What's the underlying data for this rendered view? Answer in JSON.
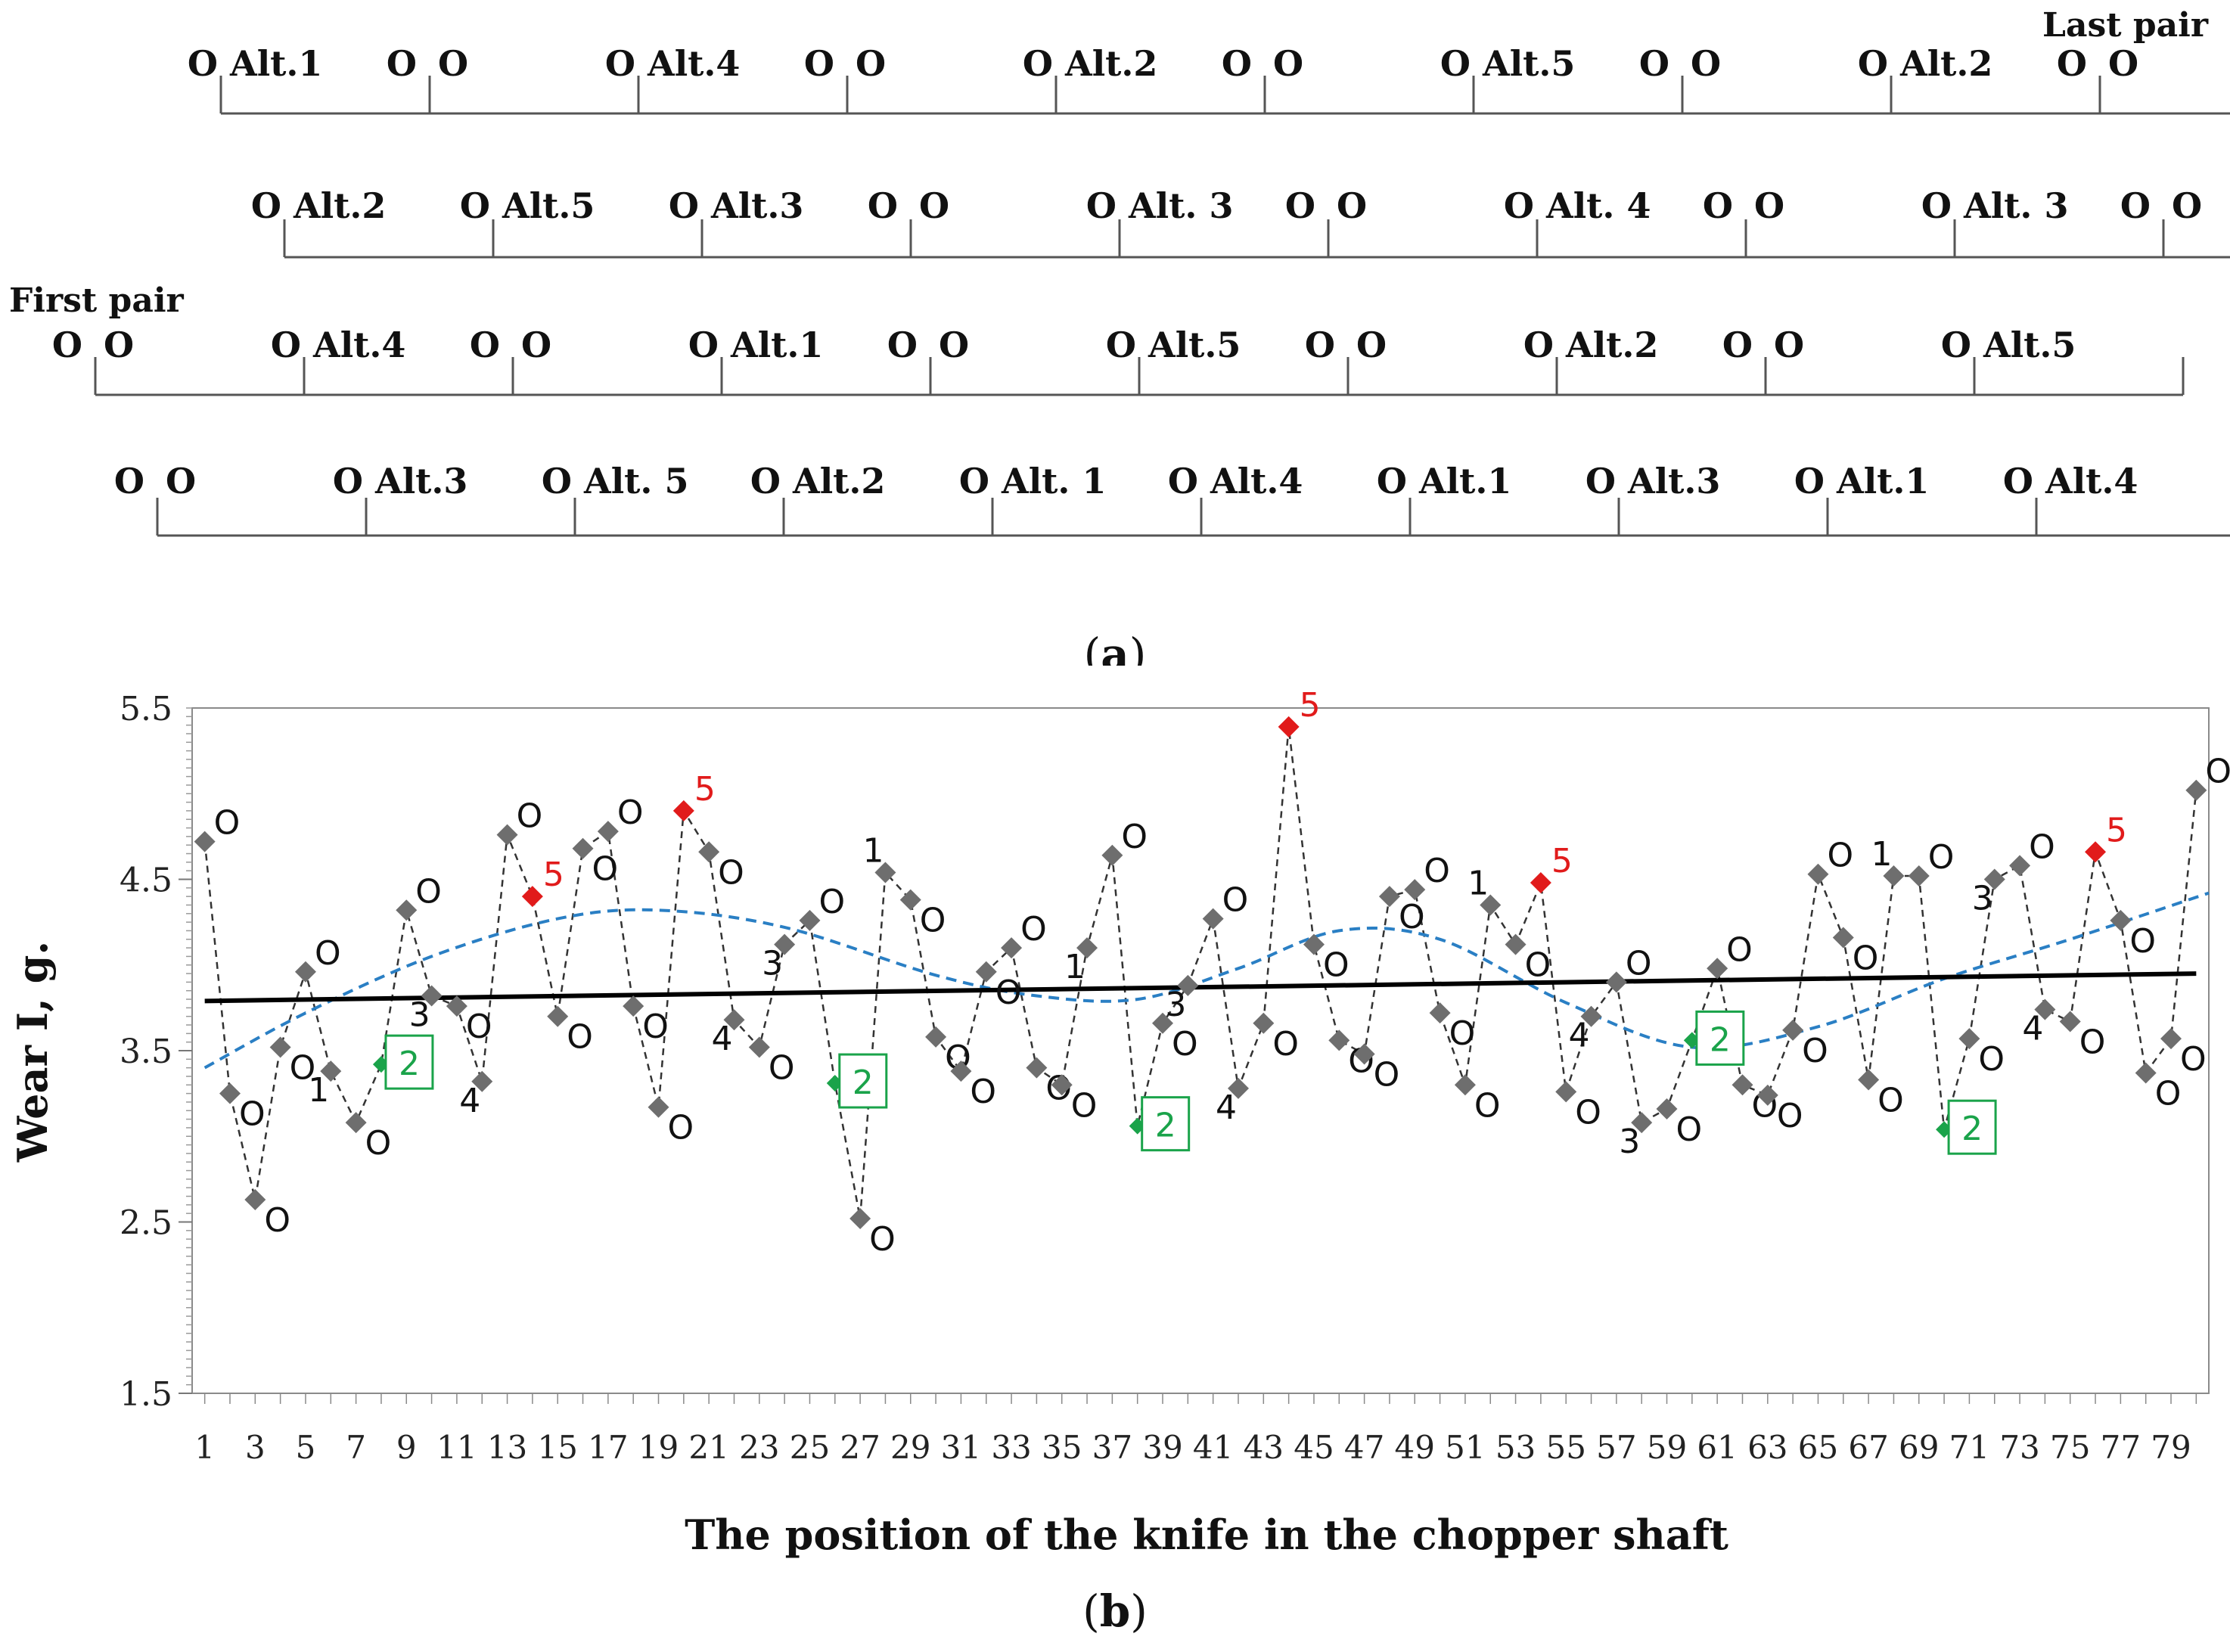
{
  "panel_a": {
    "caption_open": "(",
    "caption_letter": "a",
    "caption_close": ")",
    "first_pair_label": "First pair",
    "last_pair_label": "Last pair",
    "rows": [
      [
        {
          "pre": "O",
          "alt": "Alt.1"
        },
        {
          "pre": "O O",
          "alt": ""
        },
        {
          "pre": "O",
          "alt": "Alt.4"
        },
        {
          "pre": "O O",
          "alt": ""
        },
        {
          "pre": "O",
          "alt": "Alt.2"
        },
        {
          "pre": "O O",
          "alt": ""
        },
        {
          "pre": "O",
          "alt": "Alt.5"
        },
        {
          "pre": "O O",
          "alt": ""
        },
        {
          "pre": "O",
          "alt": "Alt.2"
        },
        {
          "pre": "O O",
          "alt": ""
        }
      ],
      [
        {
          "pre": "O",
          "alt": "Alt.2"
        },
        {
          "pre": "O",
          "alt": "Alt.5"
        },
        {
          "pre": "O",
          "alt": "Alt.3"
        },
        {
          "pre": "O O",
          "alt": ""
        },
        {
          "pre": "O",
          "alt": "Alt. 3"
        },
        {
          "pre": "O O",
          "alt": ""
        },
        {
          "pre": "O",
          "alt": "Alt. 4"
        },
        {
          "pre": "O O",
          "alt": ""
        },
        {
          "pre": "O",
          "alt": "Alt. 3"
        },
        {
          "pre": "O O",
          "alt": ""
        }
      ],
      [
        {
          "pre": "O O",
          "alt": ""
        },
        {
          "pre": "O",
          "alt": "Alt.4"
        },
        {
          "pre": "O O",
          "alt": ""
        },
        {
          "pre": "O",
          "alt": "Alt.1"
        },
        {
          "pre": "O O",
          "alt": ""
        },
        {
          "pre": "O",
          "alt": "Alt.5"
        },
        {
          "pre": "O O",
          "alt": ""
        },
        {
          "pre": "O",
          "alt": "Alt.2"
        },
        {
          "pre": "O O",
          "alt": ""
        },
        {
          "pre": "O",
          "alt": "Alt.5"
        }
      ],
      [
        {
          "pre": "O O",
          "alt": ""
        },
        {
          "pre": "O",
          "alt": "Alt.3"
        },
        {
          "pre": "O",
          "alt": "Alt. 5"
        },
        {
          "pre": "O",
          "alt": "Alt.2"
        },
        {
          "pre": "O",
          "alt": "Alt. 1"
        },
        {
          "pre": "O",
          "alt": "Alt.4"
        },
        {
          "pre": "O",
          "alt": "Alt.1"
        },
        {
          "pre": "O",
          "alt": "Alt.3"
        },
        {
          "pre": "O",
          "alt": "Alt.1"
        },
        {
          "pre": "O",
          "alt": "Alt.4"
        }
      ]
    ]
  },
  "chart_data": {
    "type": "scatter",
    "caption_open": "(",
    "caption_letter": "b",
    "caption_close": ")",
    "title": "",
    "xlabel": "The position of the knife in the chopper shaft",
    "ylabel": "Wear I, g.",
    "xlim": [
      0.5,
      80.5
    ],
    "ylim": [
      1.5,
      5.5
    ],
    "x_ticks": [
      1,
      3,
      5,
      7,
      9,
      11,
      13,
      15,
      17,
      19,
      21,
      23,
      25,
      27,
      29,
      31,
      33,
      35,
      37,
      39,
      41,
      43,
      45,
      47,
      49,
      51,
      53,
      55,
      57,
      59,
      61,
      63,
      65,
      67,
      69,
      71,
      73,
      75,
      77,
      79
    ],
    "y_ticks": [
      1.5,
      2.5,
      3.5,
      4.5
    ],
    "y_tick_labels": [
      "1.5",
      "2.5",
      "3.5",
      "4.5"
    ],
    "y_top_label": "5.5",
    "colors": {
      "O": "#6e6e6e",
      "1": "#6e6e6e",
      "3": "#6e6e6e",
      "4": "#6e6e6e",
      "2": "#1aa34a",
      "5": "#e11b1b",
      "trend": "#000000",
      "poly": "#2a7fc4",
      "label_2": "#1aa34a",
      "label_5": "#e11b1b"
    },
    "points": [
      {
        "x": 1,
        "y": 4.72,
        "type": "O",
        "label": "O"
      },
      {
        "x": 2,
        "y": 3.25,
        "type": "O",
        "label": "O"
      },
      {
        "x": 3,
        "y": 2.63,
        "type": "O",
        "label": "O"
      },
      {
        "x": 4,
        "y": 3.52,
        "type": "O",
        "label": "O"
      },
      {
        "x": 5,
        "y": 3.96,
        "type": "O",
        "label": "O"
      },
      {
        "x": 6,
        "y": 3.38,
        "type": "1",
        "label": "1"
      },
      {
        "x": 7,
        "y": 3.08,
        "type": "O",
        "label": "O"
      },
      {
        "x": 8,
        "y": 3.42,
        "type": "2",
        "label": "2"
      },
      {
        "x": 9,
        "y": 4.32,
        "type": "O",
        "label": "O"
      },
      {
        "x": 10,
        "y": 3.82,
        "type": "3",
        "label": "3"
      },
      {
        "x": 11,
        "y": 3.76,
        "type": "O",
        "label": "O"
      },
      {
        "x": 12,
        "y": 3.32,
        "type": "4",
        "label": "4"
      },
      {
        "x": 13,
        "y": 4.76,
        "type": "O",
        "label": "O"
      },
      {
        "x": 14,
        "y": 4.4,
        "type": "5",
        "label": "5"
      },
      {
        "x": 15,
        "y": 3.7,
        "type": "O",
        "label": "O"
      },
      {
        "x": 16,
        "y": 4.68,
        "type": "O",
        "label": "O"
      },
      {
        "x": 17,
        "y": 4.78,
        "type": "O",
        "label": "O"
      },
      {
        "x": 18,
        "y": 3.76,
        "type": "O",
        "label": "O"
      },
      {
        "x": 19,
        "y": 3.17,
        "type": "O",
        "label": "O"
      },
      {
        "x": 20,
        "y": 4.9,
        "type": "5",
        "label": "5"
      },
      {
        "x": 21,
        "y": 4.66,
        "type": "O",
        "label": "O"
      },
      {
        "x": 22,
        "y": 3.68,
        "type": "4",
        "label": "4"
      },
      {
        "x": 23,
        "y": 3.52,
        "type": "O",
        "label": "O"
      },
      {
        "x": 24,
        "y": 4.12,
        "type": "3",
        "label": "3"
      },
      {
        "x": 25,
        "y": 4.26,
        "type": "O",
        "label": "O"
      },
      {
        "x": 26,
        "y": 3.31,
        "type": "2",
        "label": "2"
      },
      {
        "x": 27,
        "y": 2.52,
        "type": "O",
        "label": "O"
      },
      {
        "x": 28,
        "y": 4.54,
        "type": "1",
        "label": "1"
      },
      {
        "x": 29,
        "y": 4.38,
        "type": "O",
        "label": "O"
      },
      {
        "x": 30,
        "y": 3.58,
        "type": "O",
        "label": "O"
      },
      {
        "x": 31,
        "y": 3.38,
        "type": "O",
        "label": "O"
      },
      {
        "x": 32,
        "y": 3.96,
        "type": "O",
        "label": "O"
      },
      {
        "x": 33,
        "y": 4.1,
        "type": "O",
        "label": "O"
      },
      {
        "x": 34,
        "y": 3.4,
        "type": "O",
        "label": "O"
      },
      {
        "x": 35,
        "y": 3.3,
        "type": "O",
        "label": "O"
      },
      {
        "x": 36,
        "y": 4.1,
        "type": "1",
        "label": "1"
      },
      {
        "x": 37,
        "y": 4.64,
        "type": "O",
        "label": "O"
      },
      {
        "x": 38,
        "y": 3.06,
        "type": "2",
        "label": "2"
      },
      {
        "x": 39,
        "y": 3.66,
        "type": "O",
        "label": "O"
      },
      {
        "x": 40,
        "y": 3.88,
        "type": "3",
        "label": "3"
      },
      {
        "x": 41,
        "y": 4.27,
        "type": "O",
        "label": "O"
      },
      {
        "x": 42,
        "y": 3.28,
        "type": "4",
        "label": "4"
      },
      {
        "x": 43,
        "y": 3.66,
        "type": "O",
        "label": "O"
      },
      {
        "x": 44,
        "y": 5.39,
        "type": "5",
        "label": "5"
      },
      {
        "x": 45,
        "y": 4.12,
        "type": "O",
        "label": "O"
      },
      {
        "x": 46,
        "y": 3.56,
        "type": "O",
        "label": "O"
      },
      {
        "x": 47,
        "y": 3.48,
        "type": "O",
        "label": "O"
      },
      {
        "x": 48,
        "y": 4.4,
        "type": "O",
        "label": "O"
      },
      {
        "x": 49,
        "y": 4.44,
        "type": "O",
        "label": "O"
      },
      {
        "x": 50,
        "y": 3.72,
        "type": "O",
        "label": "O"
      },
      {
        "x": 51,
        "y": 3.3,
        "type": "O",
        "label": "O"
      },
      {
        "x": 52,
        "y": 4.35,
        "type": "1",
        "label": "1"
      },
      {
        "x": 53,
        "y": 4.12,
        "type": "O",
        "label": "O"
      },
      {
        "x": 54,
        "y": 4.48,
        "type": "5",
        "label": "5"
      },
      {
        "x": 55,
        "y": 3.26,
        "type": "O",
        "label": "O"
      },
      {
        "x": 56,
        "y": 3.7,
        "type": "4",
        "label": "4"
      },
      {
        "x": 57,
        "y": 3.9,
        "type": "O",
        "label": "O"
      },
      {
        "x": 58,
        "y": 3.08,
        "type": "3",
        "label": "3"
      },
      {
        "x": 59,
        "y": 3.16,
        "type": "O",
        "label": "O"
      },
      {
        "x": 60,
        "y": 3.56,
        "type": "2",
        "label": "2"
      },
      {
        "x": 61,
        "y": 3.98,
        "type": "O",
        "label": "O"
      },
      {
        "x": 62,
        "y": 3.3,
        "type": "O",
        "label": "O"
      },
      {
        "x": 63,
        "y": 3.24,
        "type": "O",
        "label": "O"
      },
      {
        "x": 64,
        "y": 3.62,
        "type": "O",
        "label": "O"
      },
      {
        "x": 65,
        "y": 4.53,
        "type": "O",
        "label": "O"
      },
      {
        "x": 66,
        "y": 4.16,
        "type": "O",
        "label": "O"
      },
      {
        "x": 67,
        "y": 3.33,
        "type": "O",
        "label": "O"
      },
      {
        "x": 68,
        "y": 4.52,
        "type": "1",
        "label": "1"
      },
      {
        "x": 69,
        "y": 4.52,
        "type": "O",
        "label": "O"
      },
      {
        "x": 70,
        "y": 3.04,
        "type": "2",
        "label": "2"
      },
      {
        "x": 71,
        "y": 3.57,
        "type": "O",
        "label": "O"
      },
      {
        "x": 72,
        "y": 4.5,
        "type": "3",
        "label": "3"
      },
      {
        "x": 73,
        "y": 4.58,
        "type": "O",
        "label": "O"
      },
      {
        "x": 74,
        "y": 3.74,
        "type": "4",
        "label": "4"
      },
      {
        "x": 75,
        "y": 3.67,
        "type": "O",
        "label": "O"
      },
      {
        "x": 76,
        "y": 4.66,
        "type": "5",
        "label": "5"
      },
      {
        "x": 77,
        "y": 4.26,
        "type": "O",
        "label": "O"
      },
      {
        "x": 78,
        "y": 3.37,
        "type": "O",
        "label": "O"
      },
      {
        "x": 79,
        "y": 3.57,
        "type": "O",
        "label": "O"
      },
      {
        "x": 80,
        "y": 5.02,
        "type": "O",
        "label": "O"
      }
    ],
    "trend_line": {
      "x": [
        1,
        80
      ],
      "y": [
        3.79,
        3.95
      ]
    },
    "poly_curve": {
      "x": [
        1,
        5,
        10,
        15,
        19,
        24,
        30,
        34,
        38,
        42,
        46,
        50,
        55,
        60,
        65,
        70,
        75,
        80.5
      ],
      "y": [
        3.4,
        3.72,
        4.05,
        4.27,
        4.32,
        4.22,
        3.94,
        3.82,
        3.8,
        3.98,
        4.2,
        4.15,
        3.78,
        3.52,
        3.64,
        3.92,
        4.15,
        4.42
      ]
    }
  }
}
